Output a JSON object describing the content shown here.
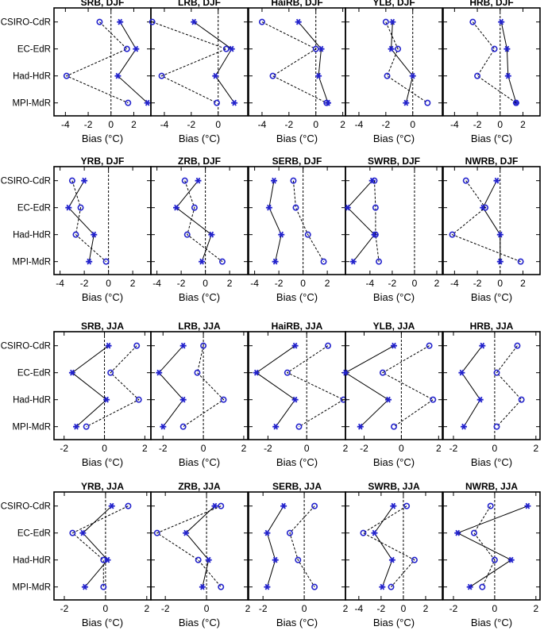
{
  "figure": {
    "model_labels": [
      "CSIRO-CdR",
      "EC-EdR",
      "Had-HdR",
      "MPI-MdR"
    ],
    "xlabel": "Bias (°C)",
    "legend": {
      "star": "solid line",
      "circle": "dashed line"
    }
  },
  "chart_data": [
    {
      "type": "scatter",
      "title": "SRB, DJF",
      "xlim": [
        -5,
        3.5
      ],
      "xticks": [
        -4,
        -2,
        0,
        2
      ],
      "series": [
        {
          "marker": "star",
          "values": [
            0.8,
            2.2,
            0.6,
            3.2
          ]
        },
        {
          "marker": "circle",
          "values": [
            -1.0,
            1.4,
            -3.9,
            1.5
          ]
        }
      ]
    },
    {
      "type": "scatter",
      "title": "LRB, DJF",
      "xlim": [
        -5,
        2.2
      ],
      "xticks": [
        -4,
        -2,
        0
      ],
      "series": [
        {
          "marker": "star",
          "values": [
            -1.8,
            1.0,
            -0.2,
            1.2
          ]
        },
        {
          "marker": "circle",
          "values": [
            -4.9,
            0.6,
            -4.2,
            -0.1
          ]
        }
      ]
    },
    {
      "type": "scatter",
      "title": "HaiRB, DJF",
      "xlim": [
        -5,
        2.2
      ],
      "xticks": [
        -4,
        -2,
        0,
        2
      ],
      "series": [
        {
          "marker": "star",
          "values": [
            -1.3,
            0.4,
            0.2,
            0.9
          ]
        },
        {
          "marker": "circle",
          "values": [
            -4.0,
            0.0,
            -3.2,
            0.8
          ]
        }
      ]
    },
    {
      "type": "scatter",
      "title": "YLB, DJF",
      "xlim": [
        -5,
        2.2
      ],
      "xticks": [
        -4,
        -2,
        0
      ],
      "series": [
        {
          "marker": "star",
          "values": [
            -1.5,
            -1.6,
            0.0,
            -0.5
          ]
        },
        {
          "marker": "circle",
          "values": [
            -2.0,
            -1.1,
            -1.9,
            1.1
          ]
        }
      ]
    },
    {
      "type": "scatter",
      "title": "HRB, DJF",
      "xlim": [
        -5,
        3.5
      ],
      "xticks": [
        -4,
        -2,
        0,
        2
      ],
      "series": [
        {
          "marker": "star",
          "values": [
            0.1,
            0.6,
            0.7,
            1.4
          ]
        },
        {
          "marker": "circle",
          "values": [
            -2.4,
            -0.5,
            -2.0,
            1.4
          ]
        }
      ]
    },
    {
      "type": "scatter",
      "title": "YRB, DJF",
      "xlim": [
        -4.5,
        3.5
      ],
      "xticks": [
        -4,
        -2,
        0,
        2
      ],
      "series": [
        {
          "marker": "star",
          "values": [
            -2.0,
            -3.3,
            -1.2,
            -1.6
          ]
        },
        {
          "marker": "circle",
          "values": [
            -3.0,
            -2.3,
            -2.7,
            -0.2
          ]
        }
      ]
    },
    {
      "type": "scatter",
      "title": "ZRB, DJF",
      "xlim": [
        -4.5,
        3.5
      ],
      "xticks": [
        -4,
        -2,
        0,
        2
      ],
      "series": [
        {
          "marker": "star",
          "values": [
            -0.6,
            -2.4,
            0.5,
            -0.3
          ]
        },
        {
          "marker": "circle",
          "values": [
            -1.7,
            -0.9,
            -1.5,
            1.4
          ]
        }
      ]
    },
    {
      "type": "scatter",
      "title": "SERB, DJF",
      "xlim": [
        -4.5,
        3.5
      ],
      "xticks": [
        -4,
        -2,
        0,
        2
      ],
      "series": [
        {
          "marker": "star",
          "values": [
            -2.4,
            -2.8,
            -1.8,
            -2.3
          ]
        },
        {
          "marker": "circle",
          "values": [
            -0.8,
            -0.6,
            0.4,
            1.7
          ]
        }
      ]
    },
    {
      "type": "scatter",
      "title": "SWRB, DJF",
      "xlim": [
        -6.2,
        2.5
      ],
      "xticks": [
        -4,
        -2,
        0,
        2
      ],
      "series": [
        {
          "marker": "star",
          "values": [
            -3.8,
            -6.0,
            -3.6,
            -5.5
          ]
        },
        {
          "marker": "circle",
          "values": [
            -3.6,
            -3.5,
            -3.5,
            -3.2
          ]
        }
      ]
    },
    {
      "type": "scatter",
      "title": "NWRB, DJF",
      "xlim": [
        -5,
        3.5
      ],
      "xticks": [
        -4,
        -2,
        0,
        2
      ],
      "series": [
        {
          "marker": "star",
          "values": [
            -0.3,
            -1.5,
            0.0,
            0.0
          ]
        },
        {
          "marker": "circle",
          "values": [
            -3.0,
            -1.3,
            -4.2,
            1.8
          ]
        }
      ]
    },
    {
      "type": "scatter",
      "title": "SRB, JJA",
      "xlim": [
        -2.5,
        2.3
      ],
      "xticks": [
        -2,
        0,
        2
      ],
      "series": [
        {
          "marker": "star",
          "values": [
            0.2,
            -1.6,
            0.1,
            -1.4
          ]
        },
        {
          "marker": "circle",
          "values": [
            1.6,
            0.3,
            1.7,
            -0.9
          ]
        }
      ]
    },
    {
      "type": "scatter",
      "title": "LRB, JJA",
      "xlim": [
        -2.6,
        2.2
      ],
      "xticks": [
        -2,
        0,
        2
      ],
      "series": [
        {
          "marker": "star",
          "values": [
            -1.0,
            -2.2,
            -1.0,
            -2.0
          ]
        },
        {
          "marker": "circle",
          "values": [
            0.0,
            -0.3,
            1.0,
            -1.0
          ]
        }
      ]
    },
    {
      "type": "scatter",
      "title": "HaiRB, JJA",
      "xlim": [
        -3.0,
        2.0
      ],
      "xticks": [
        -2,
        0,
        2
      ],
      "series": [
        {
          "marker": "star",
          "values": [
            -0.6,
            -2.6,
            -0.6,
            -1.6
          ]
        },
        {
          "marker": "circle",
          "values": [
            1.1,
            -1.0,
            1.9,
            -0.4
          ]
        }
      ]
    },
    {
      "type": "scatter",
      "title": "YLB, JJA",
      "xlim": [
        -3.0,
        2.2
      ],
      "xticks": [
        -2,
        0,
        2
      ],
      "series": [
        {
          "marker": "star",
          "values": [
            -0.4,
            -3.0,
            -0.7,
            -2.2
          ]
        },
        {
          "marker": "circle",
          "values": [
            1.5,
            -1.0,
            1.7,
            -0.4
          ]
        }
      ]
    },
    {
      "type": "scatter",
      "title": "HRB, JJA",
      "xlim": [
        -2.5,
        2.2
      ],
      "xticks": [
        -2,
        0,
        2
      ],
      "series": [
        {
          "marker": "star",
          "values": [
            -0.6,
            -1.6,
            -0.7,
            -1.5
          ]
        },
        {
          "marker": "circle",
          "values": [
            1.1,
            0.1,
            1.3,
            0.1
          ]
        }
      ]
    },
    {
      "type": "scatter",
      "title": "YRB, JJA",
      "xlim": [
        -2.5,
        2.2
      ],
      "xticks": [
        -2,
        0,
        2
      ],
      "series": [
        {
          "marker": "star",
          "values": [
            0.3,
            -1.1,
            0.1,
            -1.0
          ]
        },
        {
          "marker": "circle",
          "values": [
            1.1,
            -1.6,
            -0.1,
            -0.1
          ]
        }
      ]
    },
    {
      "type": "scatter",
      "title": "ZRB, JJA",
      "xlim": [
        -2.7,
        2.0
      ],
      "xticks": [
        -2,
        0,
        2
      ],
      "series": [
        {
          "marker": "star",
          "values": [
            0.4,
            -1.0,
            0.1,
            -0.2
          ]
        },
        {
          "marker": "circle",
          "values": [
            0.7,
            -2.4,
            -0.4,
            0.7
          ]
        }
      ]
    },
    {
      "type": "scatter",
      "title": "SERB, JJA",
      "xlim": [
        -2.7,
        2.0
      ],
      "xticks": [
        -2,
        0,
        2
      ],
      "series": [
        {
          "marker": "star",
          "values": [
            -1.0,
            -1.8,
            -1.4,
            -1.8
          ]
        },
        {
          "marker": "circle",
          "values": [
            0.5,
            -0.7,
            -0.3,
            0.5
          ]
        }
      ]
    },
    {
      "type": "scatter",
      "title": "SWRB, JJA",
      "xlim": [
        -5.2,
        3.5
      ],
      "xticks": [
        -4,
        -2,
        0,
        2
      ],
      "series": [
        {
          "marker": "star",
          "values": [
            -0.9,
            -2.6,
            -1.0,
            -1.9
          ]
        },
        {
          "marker": "circle",
          "values": [
            0.3,
            -3.6,
            1.0,
            -1.1
          ]
        }
      ]
    },
    {
      "type": "scatter",
      "title": "NWRB, JJA",
      "xlim": [
        -2.5,
        2.2
      ],
      "xticks": [
        -2,
        0,
        2
      ],
      "series": [
        {
          "marker": "star",
          "values": [
            1.6,
            -1.8,
            0.8,
            -1.2
          ]
        },
        {
          "marker": "circle",
          "values": [
            -0.2,
            -1.0,
            0.0,
            -0.6
          ]
        }
      ]
    }
  ]
}
